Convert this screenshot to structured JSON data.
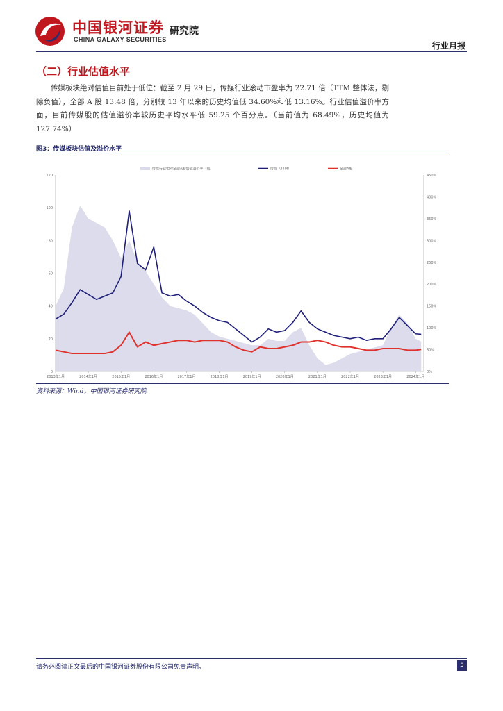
{
  "header": {
    "brand_cn": "中国银河证券",
    "brand_en": "CHINA GALAXY SECURITIES",
    "institute": "研究院",
    "report_type": "行业月报"
  },
  "section": {
    "title": "（二）行业估值水平",
    "paragraph": "传媒板块绝对估值目前处于低位：截至 2 月 29 日，传媒行业滚动市盈率为 22.71 倍（TTM 整体法，剔除负值），全部 A 股 13.48 倍，分别较 13 年以来的历史均值低 34.60%和低 13.16%。行业估值溢价率方面，目前传媒股的估值溢价率较历史平均水平低 59.25 个百分点。（当前值为 68.49%，历史均值为 127.74%）"
  },
  "figure": {
    "title": "图3：传媒板块估值及溢价水平",
    "source": "资料来源：Wind，中国银河证券研究院"
  },
  "chart_data": {
    "type": "line",
    "title": "",
    "legend": [
      {
        "name": "传媒行业相对全部A股估值溢价率（右）",
        "style": "area",
        "color": "#d9d9ea"
      },
      {
        "name": "传媒（TTM）",
        "style": "line",
        "color": "#1f1f7a"
      },
      {
        "name": "全部A股",
        "style": "line",
        "color": "#e0322c"
      }
    ],
    "x_tick_labels": [
      "2013年1月",
      "2014年1月",
      "2015年1月",
      "2016年1月",
      "2017年1月",
      "2018年1月",
      "2019年1月",
      "2020年1月",
      "2021年1月",
      "2022年1月",
      "2023年1月",
      "2024年1月"
    ],
    "x": [
      2013.0,
      2013.25,
      2013.5,
      2013.75,
      2014.0,
      2014.25,
      2014.5,
      2014.75,
      2015.0,
      2015.25,
      2015.5,
      2015.75,
      2016.0,
      2016.25,
      2016.5,
      2016.75,
      2017.0,
      2017.25,
      2017.5,
      2017.75,
      2018.0,
      2018.25,
      2018.5,
      2018.75,
      2019.0,
      2019.25,
      2019.5,
      2019.75,
      2020.0,
      2020.25,
      2020.5,
      2020.75,
      2021.0,
      2021.25,
      2021.5,
      2021.75,
      2022.0,
      2022.25,
      2022.5,
      2022.75,
      2023.0,
      2023.25,
      2023.5,
      2023.75,
      2024.0,
      2024.17
    ],
    "series": [
      {
        "name": "传媒（TTM）",
        "axis": "left",
        "values": [
          32,
          35,
          42,
          50,
          47,
          44,
          46,
          48,
          58,
          98,
          66,
          62,
          76,
          48,
          46,
          47,
          43,
          40,
          36,
          33,
          31,
          30,
          26,
          22,
          18,
          21,
          26,
          24,
          25,
          30,
          37,
          30,
          26,
          24,
          22,
          21,
          20,
          21,
          19,
          20,
          20,
          26,
          33,
          28,
          23,
          22.71
        ]
      },
      {
        "name": "全部A股",
        "axis": "left",
        "values": [
          13,
          12,
          11,
          11,
          11,
          11,
          11,
          12,
          16,
          24,
          15,
          18,
          16,
          17,
          18,
          19,
          19,
          18,
          19,
          19,
          19,
          18,
          15,
          13,
          12,
          15,
          14,
          14,
          15,
          16,
          18,
          18,
          19,
          18,
          16,
          15,
          15,
          14,
          13,
          13,
          14,
          14,
          14,
          13,
          13,
          13.48
        ]
      },
      {
        "name": "传媒行业相对全部A股估值溢价率（右）",
        "axis": "right",
        "values": [
          150,
          190,
          330,
          380,
          350,
          340,
          330,
          300,
          260,
          300,
          250,
          230,
          200,
          170,
          150,
          145,
          140,
          130,
          110,
          90,
          80,
          75,
          70,
          65,
          60,
          60,
          75,
          70,
          70,
          90,
          100,
          60,
          30,
          15,
          20,
          30,
          40,
          45,
          50,
          55,
          60,
          100,
          130,
          110,
          75,
          68.49
        ]
      }
    ],
    "left_ylim": [
      0,
      120
    ],
    "left_ticks": [
      0,
      20,
      40,
      60,
      80,
      100,
      120
    ],
    "right_ylim": [
      0,
      450
    ],
    "right_ticks": [
      "0%",
      "50%",
      "100%",
      "150%",
      "200%",
      "250%",
      "300%",
      "350%",
      "400%",
      "450%"
    ],
    "right_tick_values": [
      0,
      50,
      100,
      150,
      200,
      250,
      300,
      350,
      400,
      450
    ]
  },
  "footer": {
    "disclaimer": "请务必阅读正文最后的中国银河证券股份有限公司免责声明。",
    "page": "5"
  }
}
